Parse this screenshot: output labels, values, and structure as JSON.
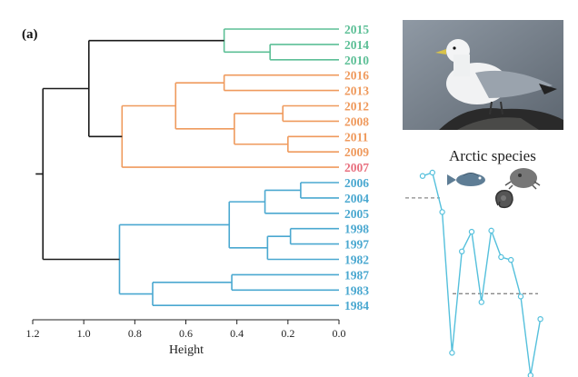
{
  "panel_label": "(a)",
  "arctic_title": "Arctic species",
  "photo": {
    "subject": "kittiwake"
  },
  "icons": [
    "fish-icon",
    "sea-mouse-icon",
    "amphipod-icon"
  ],
  "colors": {
    "green": "#5cbf96",
    "orange": "#ef9a5d",
    "pink": "#e8707f",
    "blue": "#4aa8d0",
    "black": "#1a1a1a",
    "trend_line": "#55c0dc",
    "dashed": "#888888"
  },
  "chart_data": {
    "type": "dendrogram",
    "xlabel": "Height",
    "x_ticks": [
      1.2,
      1.0,
      0.8,
      0.6,
      0.4,
      0.2,
      0.0
    ],
    "xlim": [
      1.2,
      0.0
    ],
    "leaves": [
      {
        "label": "2015",
        "group": "green"
      },
      {
        "label": "2014",
        "group": "green"
      },
      {
        "label": "2010",
        "group": "green"
      },
      {
        "label": "2016",
        "group": "orange"
      },
      {
        "label": "2013",
        "group": "orange"
      },
      {
        "label": "2012",
        "group": "orange"
      },
      {
        "label": "2008",
        "group": "orange"
      },
      {
        "label": "2011",
        "group": "orange"
      },
      {
        "label": "2009",
        "group": "orange"
      },
      {
        "label": "2007",
        "group": "pink"
      },
      {
        "label": "2006",
        "group": "blue"
      },
      {
        "label": "2004",
        "group": "blue"
      },
      {
        "label": "2005",
        "group": "blue"
      },
      {
        "label": "1998",
        "group": "blue"
      },
      {
        "label": "1997",
        "group": "blue"
      },
      {
        "label": "1982",
        "group": "blue"
      },
      {
        "label": "1987",
        "group": "blue"
      },
      {
        "label": "1983",
        "group": "blue"
      },
      {
        "label": "1984",
        "group": "blue"
      }
    ],
    "merges": [
      {
        "a": "L1",
        "b": "L2",
        "h": 0.27,
        "color": "green"
      },
      {
        "a": "L0",
        "b": "M0",
        "h": 0.45,
        "color": "green"
      },
      {
        "a": "L3",
        "b": "L4",
        "h": 0.45,
        "color": "orange"
      },
      {
        "a": "L5",
        "b": "L6",
        "h": 0.22,
        "color": "orange"
      },
      {
        "a": "L7",
        "b": "L8",
        "h": 0.2,
        "color": "orange"
      },
      {
        "a": "M3",
        "b": "M4",
        "h": 0.41,
        "color": "orange"
      },
      {
        "a": "M2",
        "b": "M5",
        "h": 0.64,
        "color": "orange"
      },
      {
        "a": "M6",
        "b": "L9",
        "h": 0.85,
        "color": "orange"
      },
      {
        "a": "M1",
        "b": "M7",
        "h": 0.98,
        "color": "black"
      },
      {
        "a": "L10",
        "b": "L11",
        "h": 0.15,
        "color": "blue"
      },
      {
        "a": "M9",
        "b": "L12",
        "h": 0.29,
        "color": "blue"
      },
      {
        "a": "L13",
        "b": "L14",
        "h": 0.19,
        "color": "blue"
      },
      {
        "a": "M11",
        "b": "L15",
        "h": 0.28,
        "color": "blue"
      },
      {
        "a": "M10",
        "b": "M12",
        "h": 0.43,
        "color": "blue"
      },
      {
        "a": "L16",
        "b": "L17",
        "h": 0.42,
        "color": "blue"
      },
      {
        "a": "M14",
        "b": "L18",
        "h": 0.73,
        "color": "blue"
      },
      {
        "a": "M13",
        "b": "M15",
        "h": 0.86,
        "color": "blue"
      },
      {
        "a": "M8",
        "b": "M16",
        "h": 1.16,
        "color": "black"
      }
    ]
  },
  "trend": {
    "values": [
      0.94,
      1.0,
      0.3,
      -2.2,
      -0.4,
      -0.05,
      -1.3,
      -0.03,
      -0.5,
      -0.55,
      -1.2,
      -2.6,
      -1.6
    ],
    "dashed_levels": [
      0.55,
      -1.15
    ]
  }
}
